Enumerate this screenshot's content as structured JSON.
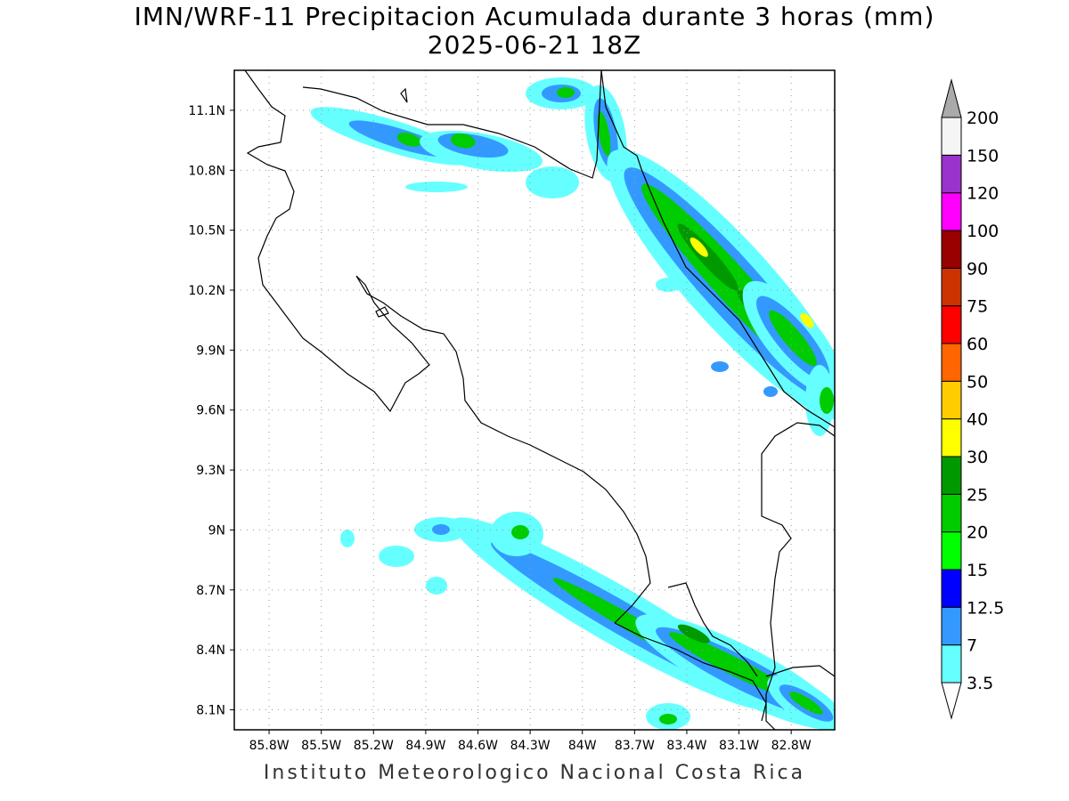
{
  "title": {
    "line1": "IMN/WRF-11 Precipitacion Acumulada durante 3 horas (mm)",
    "line2": "2025-06-21 18Z"
  },
  "footer": "Instituto Meteorologico Nacional Costa Rica",
  "map": {
    "lon_range": [
      -86.0,
      -82.55
    ],
    "lat_range": [
      8.0,
      11.3
    ],
    "gridlines": "dotted",
    "lat_ticks": [
      {
        "value": 11.1,
        "label": "11.1N"
      },
      {
        "value": 10.8,
        "label": "10.8N"
      },
      {
        "value": 10.5,
        "label": "10.5N"
      },
      {
        "value": 10.2,
        "label": "10.2N"
      },
      {
        "value": 9.9,
        "label": "9.9N"
      },
      {
        "value": 9.6,
        "label": "9.6N"
      },
      {
        "value": 9.3,
        "label": "9.3N"
      },
      {
        "value": 9.0,
        "label": "9N"
      },
      {
        "value": 8.7,
        "label": "8.7N"
      },
      {
        "value": 8.4,
        "label": "8.4N"
      },
      {
        "value": 8.1,
        "label": "8.1N"
      }
    ],
    "lon_ticks": [
      {
        "value": -85.8,
        "label": "85.8W"
      },
      {
        "value": -85.5,
        "label": "85.5W"
      },
      {
        "value": -85.2,
        "label": "85.2W"
      },
      {
        "value": -84.9,
        "label": "84.9W"
      },
      {
        "value": -84.6,
        "label": "84.6W"
      },
      {
        "value": -84.3,
        "label": "84.3W"
      },
      {
        "value": -84.0,
        "label": "84W"
      },
      {
        "value": -83.7,
        "label": "83.7W"
      },
      {
        "value": -83.4,
        "label": "83.4W"
      },
      {
        "value": -83.1,
        "label": "83.1W"
      },
      {
        "value": -82.8,
        "label": "82.8W"
      }
    ]
  },
  "colorbar": {
    "levels": [
      "3.5",
      "7",
      "12.5",
      "15",
      "20",
      "25",
      "30",
      "40",
      "50",
      "60",
      "75",
      "90",
      "100",
      "120",
      "150",
      "200"
    ],
    "colors": [
      "#66ffff",
      "#3399ff",
      "#0000ff",
      "#00ff00",
      "#00cc00",
      "#009900",
      "#ffff00",
      "#ffcc00",
      "#ff6600",
      "#ff0000",
      "#cc3300",
      "#990000",
      "#ff00ff",
      "#9933cc",
      "#f5f5f5",
      "#aaaaaa"
    ]
  }
}
